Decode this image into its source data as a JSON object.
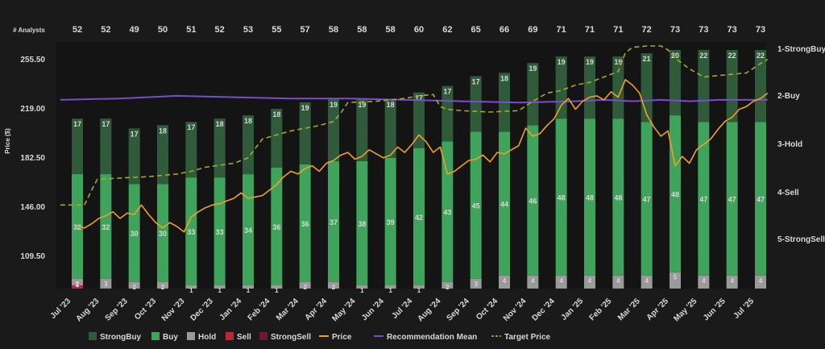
{
  "chart_data": {
    "type": "bar",
    "title": "",
    "ylabel": "Price ($)",
    "ylim": [
      85,
      268
    ],
    "analyst_header": "# Analysts",
    "months": [
      "Jul '23",
      "Aug '23",
      "Sep '23",
      "Oct '23",
      "Nov '23",
      "Dec '23",
      "Jan '24",
      "Feb '24",
      "Mar '24",
      "Apr '24",
      "May '24",
      "Jun '24",
      "Jul '24",
      "Aug '24",
      "Sep '24",
      "Oct '24",
      "Nov '24",
      "Dec '24",
      "Jan '25",
      "Feb '25",
      "Mar '25",
      "Apr '25",
      "May '25",
      "Jun '25",
      "Jul '25"
    ],
    "analyst_counts": [
      "52",
      "52",
      "49",
      "50",
      "51",
      "52",
      "53",
      "55",
      "57",
      "58",
      "58",
      "58",
      "60",
      "62",
      "65",
      "66",
      "69",
      "71",
      "71",
      "71",
      "72",
      "73",
      "73",
      "73",
      "73"
    ],
    "series": [
      {
        "name": "StrongBuy",
        "color": "#2f5b3a",
        "values": [
          17,
          17,
          17,
          18,
          17,
          18,
          18,
          18,
          19,
          19,
          19,
          18,
          17,
          17,
          17,
          18,
          19,
          19,
          19,
          19,
          21,
          20,
          22,
          22,
          22
        ]
      },
      {
        "name": "Buy",
        "color": "#3fa35b",
        "values": [
          32,
          32,
          30,
          30,
          33,
          33,
          34,
          36,
          36,
          37,
          38,
          39,
          42,
          43,
          45,
          44,
          46,
          48,
          48,
          48,
          47,
          48,
          47,
          47,
          47
        ]
      },
      {
        "name": "Hold",
        "color": "#9a9a9a",
        "values": [
          2,
          3,
          2,
          2,
          1,
          1,
          1,
          1,
          2,
          2,
          1,
          1,
          1,
          2,
          3,
          4,
          4,
          4,
          4,
          4,
          4,
          5,
          4,
          4,
          4
        ]
      },
      {
        "name": "Sell",
        "color": "#c0263a",
        "values": [
          1,
          0,
          0,
          0,
          0,
          0,
          0,
          0,
          0,
          0,
          0,
          0,
          0,
          0,
          0,
          0,
          0,
          0,
          0,
          0,
          0,
          0,
          0,
          0,
          0
        ]
      },
      {
        "name": "StrongSell",
        "color": "#6a1a2a",
        "values": [
          0,
          0,
          0,
          0,
          0,
          0,
          0,
          0,
          0,
          0,
          0,
          0,
          0,
          0,
          0,
          0,
          0,
          0,
          0,
          0,
          0,
          0,
          0,
          0,
          0
        ]
      }
    ],
    "bar_labels_strongbuy": [
      "17",
      "17",
      "17",
      "18",
      "17",
      "18",
      "18",
      "18",
      "19",
      "19",
      "19",
      "18",
      "17",
      "17",
      "17",
      "18",
      "19",
      "19",
      "19",
      "19",
      "21",
      "20",
      "22",
      "22",
      "22"
    ],
    "bar_labels_buy": [
      "32",
      "32",
      "30",
      "30",
      "33",
      "33",
      "34",
      "36",
      "36",
      "37",
      "38",
      "39",
      "42",
      "43",
      "45",
      "44",
      "46",
      "48",
      "48",
      "48",
      "47",
      "48",
      "47",
      "47",
      "47"
    ],
    "bar_labels_hold": [
      "2",
      "3",
      "2",
      "2",
      "1",
      "1",
      "1",
      "1",
      "2",
      "2",
      "1",
      "1",
      "1",
      "2",
      "3",
      "4",
      "4",
      "4",
      "4",
      "4",
      "4",
      "5",
      "4",
      "4",
      "4"
    ],
    "bar_labels_sell": [
      "1",
      "",
      "",
      "",
      "",
      "",
      "",
      "",
      "",
      "",
      "",
      "",
      "",
      "",
      "",
      "",
      "",
      "",
      "",
      "",
      "",
      "",
      "",
      "",
      ""
    ],
    "y_ticks": [
      "255.50",
      "219.00",
      "182.50",
      "146.00",
      "109.50"
    ],
    "y_tick_values": [
      255.5,
      219,
      182.5,
      146,
      109.5
    ],
    "rec_labels": [
      "1-StrongBuy",
      "2-Buy",
      "3-Hold",
      "4-Sell",
      "5-StrongSell"
    ],
    "price": [
      [
        0,
        131
      ],
      [
        0.25,
        130
      ],
      [
        0.5,
        133
      ],
      [
        0.75,
        137
      ],
      [
        1.0,
        139
      ],
      [
        1.25,
        142
      ],
      [
        1.5,
        137
      ],
      [
        1.75,
        141
      ],
      [
        2.0,
        140
      ],
      [
        2.25,
        147
      ],
      [
        2.5,
        140
      ],
      [
        2.75,
        134
      ],
      [
        3.0,
        130
      ],
      [
        3.25,
        134
      ],
      [
        3.5,
        131
      ],
      [
        3.75,
        127
      ],
      [
        4.0,
        138
      ],
      [
        4.25,
        142
      ],
      [
        4.5,
        145
      ],
      [
        4.75,
        147
      ],
      [
        5.0,
        148
      ],
      [
        5.25,
        150
      ],
      [
        5.5,
        152
      ],
      [
        5.75,
        156
      ],
      [
        6.0,
        152
      ],
      [
        6.25,
        153
      ],
      [
        6.5,
        154
      ],
      [
        6.75,
        158
      ],
      [
        7.0,
        162
      ],
      [
        7.25,
        168
      ],
      [
        7.5,
        172
      ],
      [
        7.75,
        170
      ],
      [
        8.0,
        174
      ],
      [
        8.25,
        176
      ],
      [
        8.5,
        172
      ],
      [
        8.75,
        178
      ],
      [
        9.0,
        180
      ],
      [
        9.25,
        184
      ],
      [
        9.5,
        186
      ],
      [
        9.75,
        181
      ],
      [
        10.0,
        183
      ],
      [
        10.25,
        188
      ],
      [
        10.5,
        185
      ],
      [
        10.75,
        182
      ],
      [
        11.0,
        184
      ],
      [
        11.25,
        190
      ],
      [
        11.5,
        186
      ],
      [
        11.75,
        192
      ],
      [
        12.0,
        199
      ],
      [
        12.25,
        194
      ],
      [
        12.5,
        186
      ],
      [
        12.75,
        190
      ],
      [
        13.0,
        170
      ],
      [
        13.25,
        172
      ],
      [
        13.5,
        176
      ],
      [
        13.75,
        180
      ],
      [
        14.0,
        181
      ],
      [
        14.25,
        184
      ],
      [
        14.5,
        179
      ],
      [
        14.75,
        186
      ],
      [
        15.0,
        185
      ],
      [
        15.25,
        188
      ],
      [
        15.5,
        191
      ],
      [
        15.75,
        204
      ],
      [
        16.0,
        198
      ],
      [
        16.25,
        200
      ],
      [
        16.5,
        206
      ],
      [
        16.75,
        211
      ],
      [
        17.0,
        221
      ],
      [
        17.25,
        226
      ],
      [
        17.5,
        218
      ],
      [
        17.75,
        224
      ],
      [
        18.0,
        227
      ],
      [
        18.25,
        228
      ],
      [
        18.5,
        225
      ],
      [
        18.75,
        231
      ],
      [
        19.0,
        227
      ],
      [
        19.25,
        240
      ],
      [
        19.5,
        236
      ],
      [
        19.75,
        230
      ],
      [
        20.0,
        214
      ],
      [
        20.25,
        205
      ],
      [
        20.5,
        198
      ],
      [
        20.75,
        202
      ],
      [
        21.0,
        176
      ],
      [
        21.25,
        183
      ],
      [
        21.5,
        178
      ],
      [
        21.75,
        188
      ],
      [
        22.0,
        192
      ],
      [
        22.25,
        196
      ],
      [
        22.5,
        203
      ],
      [
        22.75,
        209
      ],
      [
        23.0,
        212
      ],
      [
        23.25,
        218
      ],
      [
        23.5,
        220
      ],
      [
        23.75,
        224
      ],
      [
        24.0,
        226
      ],
      [
        24.25,
        230
      ]
    ],
    "target_price": [
      [
        -0.6,
        147
      ],
      [
        0.25,
        147
      ],
      [
        0.5,
        158
      ],
      [
        0.7,
        166
      ],
      [
        1.5,
        167
      ],
      [
        2.5,
        168
      ],
      [
        3.5,
        170
      ],
      [
        4.0,
        172
      ],
      [
        4.5,
        175
      ],
      [
        5.5,
        178
      ],
      [
        6.0,
        182
      ],
      [
        6.5,
        196
      ],
      [
        7.5,
        202
      ],
      [
        8.5,
        206
      ],
      [
        9.0,
        209
      ],
      [
        9.25,
        215
      ],
      [
        9.5,
        223
      ],
      [
        10.5,
        224
      ],
      [
        11.5,
        226
      ],
      [
        12.0,
        228
      ],
      [
        12.5,
        229
      ],
      [
        12.75,
        220
      ],
      [
        13.0,
        218
      ],
      [
        13.5,
        217
      ],
      [
        14.5,
        216
      ],
      [
        15.5,
        217
      ],
      [
        16.0,
        224
      ],
      [
        16.5,
        230
      ],
      [
        17.0,
        232
      ],
      [
        17.5,
        236
      ],
      [
        18.0,
        238
      ],
      [
        18.5,
        242
      ],
      [
        19.0,
        246
      ],
      [
        19.25,
        260
      ],
      [
        19.5,
        264
      ],
      [
        20.0,
        265
      ],
      [
        20.5,
        265
      ],
      [
        20.75,
        262
      ],
      [
        21.0,
        256
      ],
      [
        21.5,
        248
      ],
      [
        22.0,
        242
      ],
      [
        22.5,
        243
      ],
      [
        23.0,
        244
      ],
      [
        23.5,
        245
      ],
      [
        24.0,
        252
      ],
      [
        24.25,
        255
      ]
    ],
    "rec_mean": [
      [
        -0.6,
        225
      ],
      [
        1.5,
        226
      ],
      [
        3.5,
        228
      ],
      [
        5.5,
        227
      ],
      [
        7.5,
        226
      ],
      [
        9.5,
        226
      ],
      [
        11.5,
        225
      ],
      [
        13.5,
        224
      ],
      [
        15.5,
        223
      ],
      [
        17.5,
        224
      ],
      [
        18.5,
        225
      ],
      [
        19.5,
        224
      ],
      [
        20.5,
        225
      ],
      [
        21.5,
        224
      ],
      [
        22.5,
        225
      ],
      [
        24.25,
        225
      ]
    ]
  },
  "legend": [
    {
      "label": "StrongBuy",
      "color": "#2f5b3a",
      "kind": "box"
    },
    {
      "label": "Buy",
      "color": "#3fa35b",
      "kind": "box"
    },
    {
      "label": "Hold",
      "color": "#9a9a9a",
      "kind": "box"
    },
    {
      "label": "Sell",
      "color": "#c0263a",
      "kind": "box"
    },
    {
      "label": "StrongSell",
      "color": "#6a1a2a",
      "kind": "box"
    },
    {
      "label": "Price",
      "color": "#f0a02a",
      "kind": "line"
    },
    {
      "label": "Recommendation Mean",
      "color": "#7b4bd0",
      "kind": "line"
    },
    {
      "label": "Target Price",
      "color": "#9a9a2a",
      "kind": "dash"
    }
  ]
}
